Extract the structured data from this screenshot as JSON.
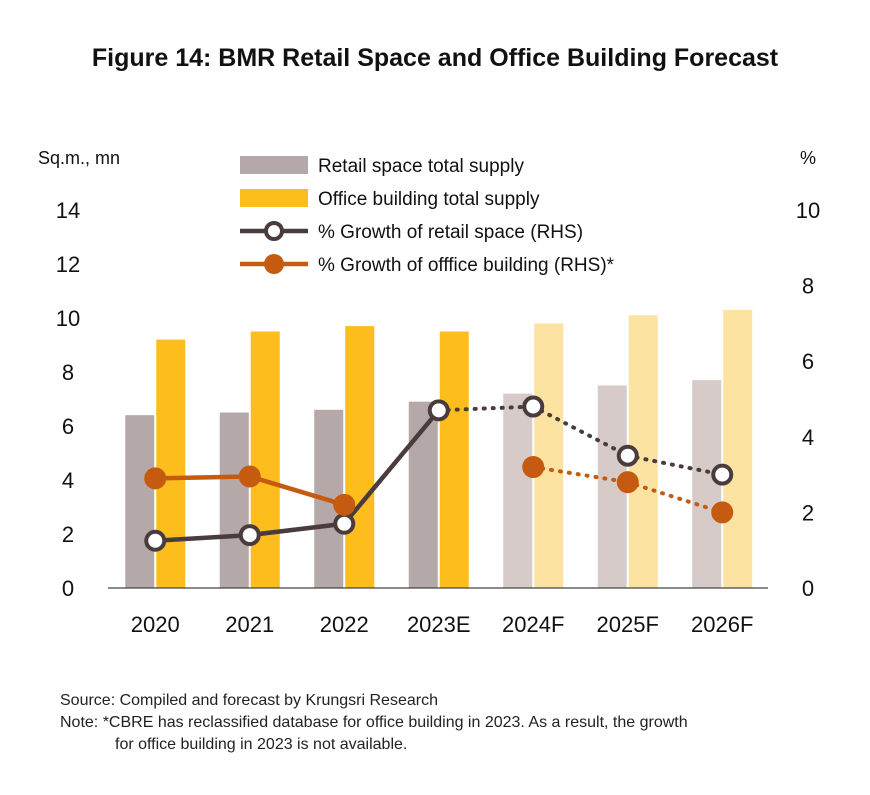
{
  "title": "Figure 14: BMR Retail Space and Office Building Forecast",
  "source": "Source: Compiled and forecast by Krungsri Research",
  "note_line1": "Note: *CBRE has reclassified database for office building in 2023. As a result, the growth",
  "note_line2": "for office building in 2023 is not available.",
  "colors": {
    "retail": "#b5a8a8",
    "retail_forecast": "#d6cbc9",
    "office": "#fdbd1c",
    "office_forecast": "#fde3a1",
    "retail_growth": "#4a3c3c",
    "office_growth": "#c55a11"
  },
  "chart_data": {
    "type": "bar",
    "categories": [
      "2020",
      "2021",
      "2022",
      "2023E",
      "2024F",
      "2025F",
      "2026F"
    ],
    "forecast_from_index": 4,
    "ylabel_left": "Sq.m., mn",
    "ylabel_right": "%",
    "ylim_left": [
      0,
      14
    ],
    "ylim_right": [
      0,
      10
    ],
    "yticks_left": [
      "0",
      "2",
      "4",
      "6",
      "8",
      "10",
      "12",
      "14"
    ],
    "yticks_right": [
      "0",
      "2",
      "4",
      "6",
      "8",
      "10"
    ],
    "legend_position": "top-center",
    "series": [
      {
        "name": "Retail space total supply",
        "kind": "bar",
        "axis": "left",
        "values": [
          6.4,
          6.5,
          6.6,
          6.9,
          7.2,
          7.5,
          7.7
        ]
      },
      {
        "name": "Office building total supply",
        "kind": "bar",
        "axis": "left",
        "values": [
          9.2,
          9.5,
          9.7,
          9.5,
          9.8,
          10.1,
          10.3
        ]
      },
      {
        "name": "% Growth of retail space (RHS)",
        "kind": "line",
        "axis": "right",
        "values": [
          1.25,
          1.4,
          1.7,
          4.7,
          4.8,
          3.5,
          3.0
        ]
      },
      {
        "name": "% Growth of offfice building (RHS)*",
        "kind": "line",
        "axis": "right",
        "values": [
          2.9,
          2.95,
          2.2,
          null,
          3.2,
          2.8,
          2.0
        ]
      }
    ]
  }
}
